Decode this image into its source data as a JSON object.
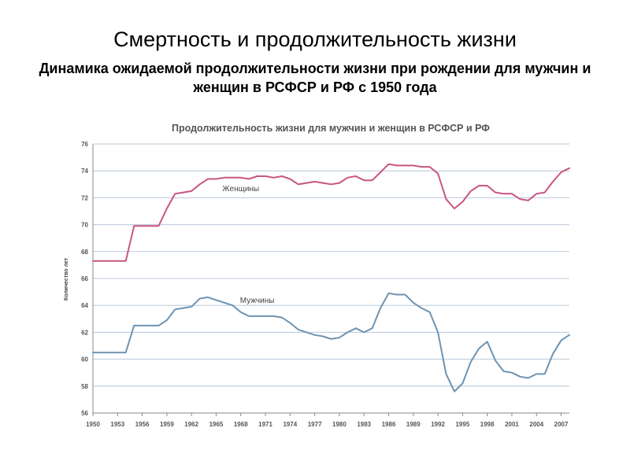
{
  "slide": {
    "title": "Смертность и продолжительность жизни",
    "subtitle": "Динамика ожидаемой продолжительности жизни при рождении для мужчин и женщин в РСФСР и РФ с 1950 года"
  },
  "colors": {
    "women": "#c9557f",
    "men": "#6d93b3",
    "grid": "#b9c7d8",
    "axis": "#888888"
  },
  "chart_data": {
    "type": "line",
    "title": "Продолжительность жизни для мужчин и женщин в РСФСР и РФ",
    "xlabel": "",
    "ylabel": "Количество лет",
    "xlim": [
      1950,
      2008
    ],
    "ylim": [
      56,
      76
    ],
    "x_ticks": [
      1950,
      1953,
      1956,
      1959,
      1962,
      1965,
      1968,
      1971,
      1974,
      1977,
      1980,
      1983,
      1986,
      1989,
      1992,
      1995,
      1998,
      2001,
      2004,
      2007
    ],
    "y_ticks": [
      56,
      58,
      60,
      62,
      64,
      66,
      68,
      70,
      72,
      74,
      76
    ],
    "grid": true,
    "legend": "none",
    "series": [
      {
        "name": "Женщины",
        "x": [
          1950,
          1951,
          1952,
          1953,
          1954,
          1955,
          1956,
          1957,
          1958,
          1959,
          1960,
          1961,
          1962,
          1963,
          1964,
          1965,
          1966,
          1967,
          1968,
          1969,
          1970,
          1971,
          1972,
          1973,
          1974,
          1975,
          1976,
          1977,
          1978,
          1979,
          1980,
          1981,
          1982,
          1983,
          1984,
          1985,
          1986,
          1987,
          1988,
          1989,
          1990,
          1991,
          1992,
          1993,
          1994,
          1995,
          1996,
          1997,
          1998,
          1999,
          2000,
          2001,
          2002,
          2003,
          2004,
          2005,
          2006,
          2007,
          2008
        ],
        "values": [
          67.3,
          67.3,
          67.3,
          67.3,
          67.3,
          69.9,
          69.9,
          69.9,
          69.9,
          71.2,
          72.3,
          72.4,
          72.5,
          73.0,
          73.4,
          73.4,
          73.5,
          73.5,
          73.5,
          73.4,
          73.6,
          73.6,
          73.5,
          73.6,
          73.4,
          73.0,
          73.1,
          73.2,
          73.1,
          73.0,
          73.1,
          73.5,
          73.6,
          73.3,
          73.3,
          73.9,
          74.5,
          74.4,
          74.4,
          74.4,
          74.3,
          74.3,
          73.8,
          71.9,
          71.2,
          71.7,
          72.5,
          72.9,
          72.9,
          72.4,
          72.3,
          72.3,
          71.9,
          71.8,
          72.3,
          72.4,
          73.2,
          73.9,
          74.2
        ]
      },
      {
        "name": "Мужчины",
        "x": [
          1950,
          1951,
          1952,
          1953,
          1954,
          1955,
          1956,
          1957,
          1958,
          1959,
          1960,
          1961,
          1962,
          1963,
          1964,
          1965,
          1966,
          1967,
          1968,
          1969,
          1970,
          1971,
          1972,
          1973,
          1974,
          1975,
          1976,
          1977,
          1978,
          1979,
          1980,
          1981,
          1982,
          1983,
          1984,
          1985,
          1986,
          1987,
          1988,
          1989,
          1990,
          1991,
          1992,
          1993,
          1994,
          1995,
          1996,
          1997,
          1998,
          1999,
          2000,
          2001,
          2002,
          2003,
          2004,
          2005,
          2006,
          2007,
          2008
        ],
        "values": [
          60.5,
          60.5,
          60.5,
          60.5,
          60.5,
          62.5,
          62.5,
          62.5,
          62.5,
          62.9,
          63.7,
          63.8,
          63.9,
          64.5,
          64.6,
          64.4,
          64.2,
          64.0,
          63.5,
          63.2,
          63.2,
          63.2,
          63.2,
          63.1,
          62.7,
          62.2,
          62.0,
          61.8,
          61.7,
          61.5,
          61.6,
          62.0,
          62.3,
          62.0,
          62.3,
          63.8,
          64.9,
          64.8,
          64.8,
          64.2,
          63.8,
          63.5,
          62.0,
          58.9,
          57.6,
          58.2,
          59.8,
          60.8,
          61.3,
          59.9,
          59.1,
          59.0,
          58.7,
          58.6,
          58.9,
          58.9,
          60.4,
          61.4,
          61.8
        ]
      }
    ],
    "annotations": [
      {
        "text": "Женщины",
        "x": 1968,
        "y": 72.5,
        "series": 0
      },
      {
        "text": "Мужчины",
        "x": 1970,
        "y": 64.2,
        "series": 1
      }
    ]
  }
}
